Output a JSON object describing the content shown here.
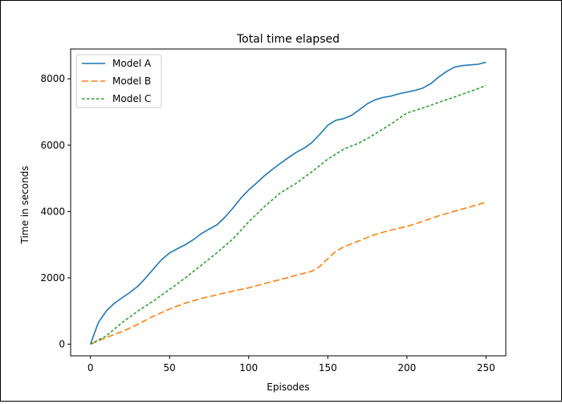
{
  "chart_data": {
    "type": "line",
    "title": "Total time elapsed",
    "xlabel": "Episodes",
    "ylabel": "Time in seconds",
    "xlim": [
      -12.5,
      262.5
    ],
    "ylim": [
      -350,
      8900
    ],
    "xticks": [
      0,
      50,
      100,
      150,
      200,
      250
    ],
    "yticks": [
      0,
      2000,
      4000,
      6000,
      8000
    ],
    "grid": false,
    "legend_position": "top-left",
    "series": [
      {
        "name": "Model A",
        "color": "#1f77b4",
        "style": "solid",
        "x": [
          0,
          5,
          10,
          15,
          20,
          25,
          30,
          35,
          40,
          45,
          50,
          55,
          60,
          65,
          70,
          75,
          80,
          85,
          90,
          95,
          100,
          105,
          110,
          115,
          120,
          125,
          130,
          135,
          140,
          145,
          150,
          155,
          160,
          165,
          170,
          175,
          180,
          185,
          190,
          195,
          200,
          205,
          210,
          215,
          220,
          225,
          230,
          235,
          240,
          245,
          250
        ],
        "y": [
          0,
          650,
          1000,
          1230,
          1400,
          1560,
          1750,
          2000,
          2280,
          2550,
          2750,
          2880,
          3000,
          3150,
          3330,
          3470,
          3600,
          3830,
          4100,
          4400,
          4650,
          4860,
          5080,
          5270,
          5450,
          5620,
          5780,
          5910,
          6080,
          6330,
          6600,
          6750,
          6800,
          6900,
          7070,
          7250,
          7370,
          7440,
          7480,
          7550,
          7600,
          7650,
          7720,
          7850,
          8050,
          8220,
          8350,
          8400,
          8420,
          8440,
          8500
        ]
      },
      {
        "name": "Model B",
        "color": "#ff7f0e",
        "style": "dashed",
        "x": [
          0,
          10,
          20,
          30,
          40,
          50,
          60,
          70,
          80,
          90,
          100,
          110,
          120,
          130,
          140,
          145,
          150,
          155,
          160,
          170,
          180,
          190,
          200,
          210,
          220,
          230,
          240,
          250
        ],
        "y": [
          0,
          200,
          380,
          600,
          850,
          1060,
          1240,
          1380,
          1490,
          1600,
          1700,
          1830,
          1950,
          2080,
          2200,
          2350,
          2580,
          2800,
          2930,
          3120,
          3310,
          3440,
          3550,
          3700,
          3870,
          4010,
          4140,
          4280
        ]
      },
      {
        "name": "Model C",
        "color": "#2ca02c",
        "style": "dotted",
        "x": [
          0,
          10,
          20,
          30,
          40,
          50,
          60,
          70,
          80,
          90,
          100,
          110,
          120,
          130,
          140,
          150,
          160,
          170,
          180,
          190,
          200,
          210,
          220,
          230,
          240,
          250
        ],
        "y": [
          0,
          250,
          650,
          1000,
          1310,
          1650,
          2000,
          2380,
          2760,
          3170,
          3690,
          4150,
          4560,
          4850,
          5200,
          5580,
          5880,
          6070,
          6340,
          6640,
          6970,
          7120,
          7290,
          7450,
          7620,
          7800
        ]
      }
    ]
  }
}
